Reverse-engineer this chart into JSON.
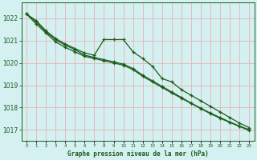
{
  "bg_color": "#d4f0f0",
  "grid_color": "#e8b4b4",
  "line_color": "#1a5c1a",
  "marker_color": "#1a5c1a",
  "xlim": [
    -0.5,
    23.5
  ],
  "ylim": [
    1016.5,
    1022.7
  ],
  "yticks": [
    1017,
    1018,
    1019,
    1020,
    1021,
    1022
  ],
  "xticks": [
    0,
    1,
    2,
    3,
    4,
    5,
    6,
    7,
    8,
    9,
    10,
    11,
    12,
    13,
    14,
    15,
    16,
    17,
    18,
    19,
    20,
    21,
    22,
    23
  ],
  "xlabel": "Graphe pression niveau de la mer (hPa)",
  "line1": [
    1022.2,
    1021.9,
    1021.45,
    1021.1,
    1020.85,
    1020.65,
    1020.45,
    1020.35,
    1021.05,
    1021.05,
    1021.05,
    1020.5,
    1020.2,
    1019.85,
    1019.3,
    1019.15,
    1018.8,
    1018.55,
    1018.3,
    1018.05,
    1017.8,
    1017.55,
    1017.3,
    1017.1
  ],
  "line2": [
    1022.2,
    1021.85,
    1021.4,
    1021.05,
    1020.8,
    1020.6,
    1020.35,
    1020.25,
    1020.15,
    1020.05,
    1019.95,
    1019.75,
    1019.45,
    1019.2,
    1018.95,
    1018.7,
    1018.45,
    1018.2,
    1017.97,
    1017.75,
    1017.55,
    1017.35,
    1017.17,
    1017.0
  ],
  "line3": [
    1022.2,
    1021.75,
    1021.35,
    1020.95,
    1020.7,
    1020.5,
    1020.3,
    1020.2,
    1020.1,
    1020.0,
    1019.9,
    1019.7,
    1019.4,
    1019.15,
    1018.9,
    1018.65,
    1018.42,
    1018.18,
    1017.95,
    1017.72,
    1017.52,
    1017.33,
    1017.15,
    1016.97
  ]
}
